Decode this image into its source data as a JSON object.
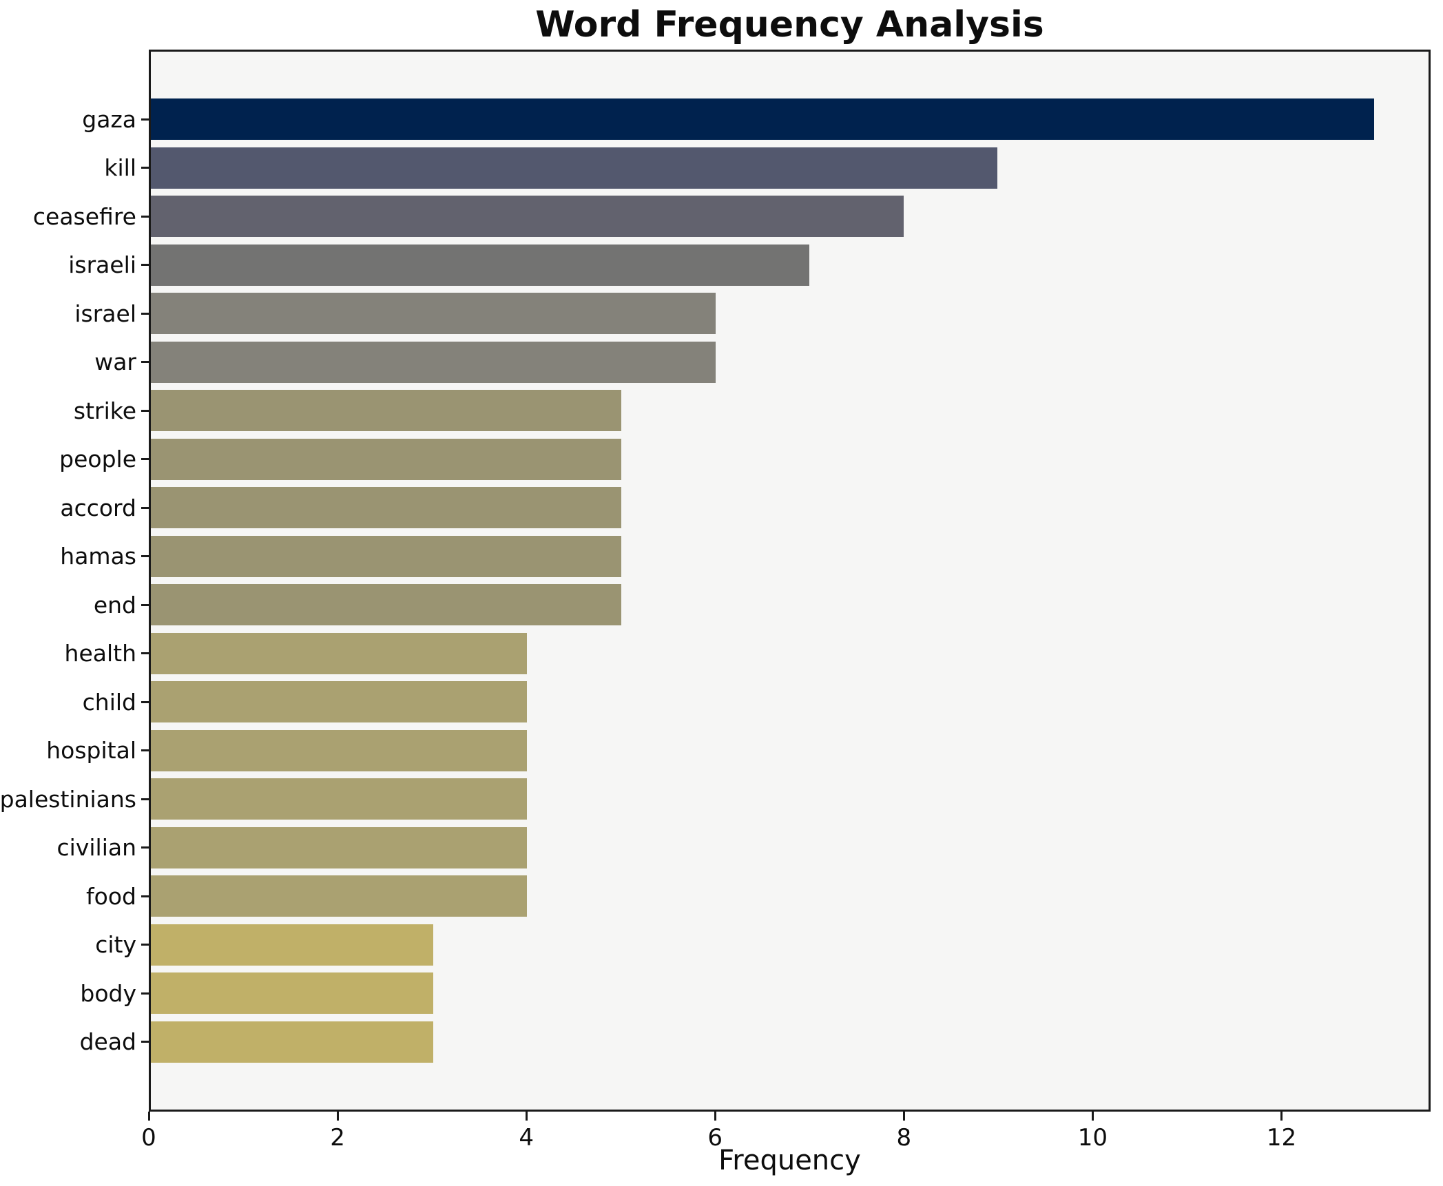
{
  "figure": {
    "background_color": "#ffffff",
    "plot_background_color": "#f6f6f5",
    "frame_color": "#1a1a1a",
    "text_color": "#0d0d0d"
  },
  "chart_data": {
    "type": "bar",
    "orientation": "horizontal",
    "title": "Word Frequency Analysis",
    "xlabel": "Frequency",
    "ylabel": "",
    "grid": false,
    "legend_position": "none",
    "xlim": [
      0,
      13.58
    ],
    "x_ticks": [
      0,
      2,
      4,
      6,
      8,
      10,
      12
    ],
    "categories": [
      "gaza",
      "kill",
      "ceasefire",
      "israeli",
      "israel",
      "war",
      "strike",
      "people",
      "accord",
      "hamas",
      "end",
      "health",
      "child",
      "hospital",
      "palestinians",
      "civilian",
      "food",
      "city",
      "body",
      "dead"
    ],
    "values": [
      13,
      9,
      8,
      7,
      6,
      6,
      5,
      5,
      5,
      5,
      5,
      4,
      4,
      4,
      4,
      4,
      4,
      3,
      3,
      3
    ],
    "bar_colors": [
      "#00224e",
      "#53586e",
      "#62626e",
      "#737372",
      "#84827a",
      "#84827a",
      "#9a9472",
      "#9a9472",
      "#9a9472",
      "#9a9472",
      "#9a9472",
      "#aaa171",
      "#aaa171",
      "#aaa171",
      "#aaa171",
      "#aaa171",
      "#aaa171",
      "#c0b068",
      "#c0b068",
      "#c0b068"
    ]
  }
}
